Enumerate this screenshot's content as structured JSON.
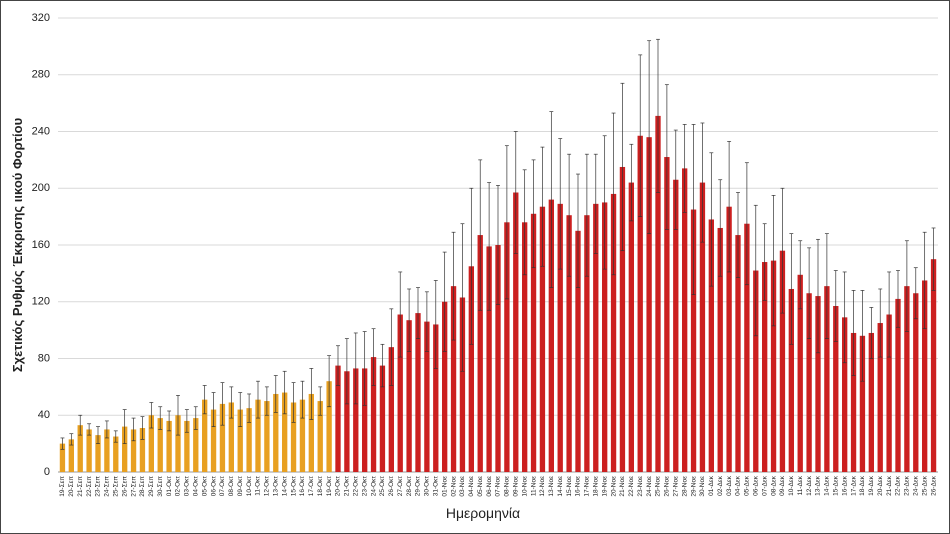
{
  "chart_data": {
    "type": "bar",
    "x_label": "Ημερομηνία",
    "y_label": "Σχετικός Ρυθμός Έκκρισης ιικού Φορτίου",
    "categories": [
      "19-Σεπ",
      "20-Σεπ",
      "21-Σεπ",
      "22-Σεπ",
      "23-Σεπ",
      "24-Σεπ",
      "25-Σεπ",
      "26-Σεπ",
      "27-Σεπ",
      "28-Σεπ",
      "29-Σεπ",
      "30-Σεπ",
      "01-Οκτ",
      "02-Οκτ",
      "03-Οκτ",
      "04-Οκτ",
      "05-Οκτ",
      "06-Οκτ",
      "07-Οκτ",
      "08-Οκτ",
      "09-Οκτ",
      "10-Οκτ",
      "11-Οκτ",
      "12-Οκτ",
      "13-Οκτ",
      "14-Οκτ",
      "15-Οκτ",
      "16-Οκτ",
      "17-Οκτ",
      "18-Οκτ",
      "19-Οκτ",
      "20-Οκτ",
      "21-Οκτ",
      "22-Οκτ",
      "23-Οκτ",
      "24-Οκτ",
      "25-Οκτ",
      "26-Οκτ",
      "27-Οκτ",
      "28-Οκτ",
      "29-Οκτ",
      "30-Οκτ",
      "31-Οκτ",
      "01-Νοε",
      "02-Νοε",
      "03-Νοε",
      "04-Νοε",
      "05-Νοε",
      "06-Νοε",
      "07-Νοε",
      "08-Νοε",
      "09-Νοε",
      "10-Νοε",
      "11-Νοε",
      "12-Νοε",
      "13-Νοε",
      "14-Νοε",
      "15-Νοε",
      "16-Νοε",
      "17-Νοε",
      "18-Νοε",
      "19-Νοε",
      "20-Νοε",
      "21-Νοε",
      "22-Νοε",
      "23-Νοε",
      "24-Νοε",
      "25-Νοε",
      "26-Νοε",
      "27-Νοε",
      "28-Νοε",
      "29-Νοε",
      "30-Νοε",
      "01-Δεκ",
      "02-Δεκ",
      "03-Δεκ",
      "04-Δεκ",
      "05-Δεκ",
      "06-Δεκ",
      "07-Δεκ",
      "08-Δεκ",
      "09-Δεκ",
      "10-Δεκ",
      "11-Δεκ",
      "12-Δεκ",
      "13-Δεκ",
      "14-Δεκ",
      "15-Δεκ",
      "16-Δεκ",
      "17-Δεκ",
      "18-Δεκ",
      "19-Δεκ",
      "20-Δεκ",
      "21-Δεκ",
      "22-Δεκ",
      "23-Δεκ",
      "24-Δεκ",
      "25-Δεκ",
      "26-Δεκ"
    ],
    "values": [
      20,
      23,
      33,
      30,
      26,
      30,
      25,
      32,
      30,
      31,
      40,
      38,
      36,
      40,
      36,
      38,
      51,
      44,
      48,
      49,
      44,
      45,
      51,
      50,
      55,
      56,
      49,
      51,
      55,
      50,
      64,
      75,
      71,
      73,
      73,
      81,
      75,
      88,
      111,
      107,
      112,
      106,
      104,
      120,
      131,
      123,
      145,
      167,
      159,
      160,
      176,
      197,
      176,
      182,
      187,
      192,
      189,
      181,
      170,
      181,
      189,
      190,
      196,
      215,
      204,
      237,
      236,
      251,
      222,
      206,
      214,
      185,
      204,
      178,
      172,
      187,
      167,
      175,
      142,
      148,
      149,
      156,
      129,
      139,
      126,
      124,
      131,
      117,
      109,
      98,
      96,
      98,
      105,
      111,
      122,
      131,
      126,
      135,
      150
    ],
    "errors": [
      4,
      4,
      7,
      4,
      6,
      6,
      4,
      12,
      8,
      8,
      9,
      8,
      7,
      14,
      8,
      8,
      10,
      12,
      15,
      11,
      12,
      10,
      13,
      10,
      13,
      15,
      14,
      13,
      18,
      10,
      18,
      14,
      23,
      25,
      26,
      20,
      15,
      27,
      30,
      22,
      18,
      21,
      31,
      35,
      38,
      52,
      55,
      53,
      45,
      42,
      54,
      43,
      37,
      38,
      42,
      62,
      46,
      43,
      40,
      43,
      35,
      47,
      57,
      59,
      27,
      57,
      68,
      54,
      51,
      35,
      31,
      60,
      42,
      47,
      34,
      46,
      30,
      43,
      46,
      27,
      46,
      44,
      39,
      24,
      32,
      40,
      37,
      25,
      32,
      30,
      32,
      18,
      24,
      30,
      20,
      32,
      18,
      34,
      22
    ],
    "colors": [
      "#e8a021",
      "#e8a021",
      "#e8a021",
      "#e8a021",
      "#e8a021",
      "#e8a021",
      "#e8a021",
      "#e8a021",
      "#e8a021",
      "#e8a021",
      "#e8a021",
      "#e8a021",
      "#e8a021",
      "#e8a021",
      "#e8a021",
      "#e8a021",
      "#e8a021",
      "#e8a021",
      "#e8a021",
      "#e8a021",
      "#e8a021",
      "#e8a021",
      "#e8a021",
      "#e8a021",
      "#e8a021",
      "#e8a021",
      "#e8a021",
      "#e8a021",
      "#e8a021",
      "#e8a021",
      "#e8a021",
      "#cc1f1f",
      "#cc1f1f",
      "#cc1f1f",
      "#cc1f1f",
      "#cc1f1f",
      "#cc1f1f",
      "#cc1f1f",
      "#cc1f1f",
      "#cc1f1f",
      "#cc1f1f",
      "#cc1f1f",
      "#cc1f1f",
      "#cc1f1f",
      "#cc1f1f",
      "#cc1f1f",
      "#cc1f1f",
      "#cc1f1f",
      "#cc1f1f",
      "#cc1f1f",
      "#cc1f1f",
      "#cc1f1f",
      "#cc1f1f",
      "#cc1f1f",
      "#cc1f1f",
      "#cc1f1f",
      "#cc1f1f",
      "#cc1f1f",
      "#cc1f1f",
      "#cc1f1f",
      "#cc1f1f",
      "#cc1f1f",
      "#cc1f1f",
      "#cc1f1f",
      "#cc1f1f",
      "#cc1f1f",
      "#cc1f1f",
      "#cc1f1f",
      "#cc1f1f",
      "#cc1f1f",
      "#cc1f1f",
      "#cc1f1f",
      "#cc1f1f",
      "#cc1f1f",
      "#cc1f1f",
      "#cc1f1f",
      "#cc1f1f",
      "#cc1f1f",
      "#cc1f1f",
      "#cc1f1f",
      "#cc1f1f",
      "#cc1f1f",
      "#cc1f1f",
      "#cc1f1f",
      "#cc1f1f",
      "#cc1f1f",
      "#cc1f1f",
      "#cc1f1f",
      "#cc1f1f",
      "#cc1f1f",
      "#cc1f1f",
      "#cc1f1f",
      "#cc1f1f",
      "#cc1f1f",
      "#cc1f1f",
      "#cc1f1f",
      "#cc1f1f",
      "#cc1f1f",
      "#cc1f1f"
    ],
    "ylim": [
      0,
      320
    ],
    "yticks": [
      0,
      40,
      80,
      120,
      160,
      200,
      240,
      280,
      320
    ],
    "grid": true
  }
}
